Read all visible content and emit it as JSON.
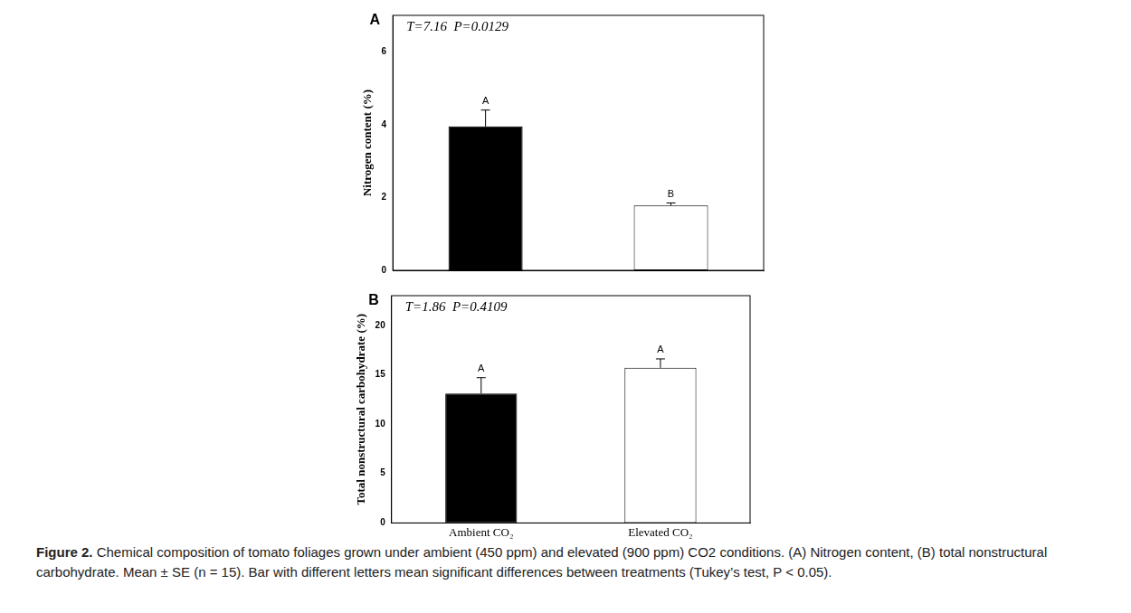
{
  "caption": {
    "label": "Figure 2.",
    "text": "Chemical composition of tomato foliages grown under ambient (450 ppm) and elevated (900 ppm) CO2 conditions. (A) Nitrogen content, (B) total nonstructural carbohydrate. Mean ± SE (n = 15). Bar with different letters mean significant differences between treatments (Tukey’s test, P < 0.05)."
  },
  "chart_data": [
    {
      "type": "bar",
      "panel": "A",
      "annotation": "T=7.16  P=0.0129",
      "y_label": "Nitrogen content (%)",
      "categories": [
        null,
        null
      ],
      "values": [
        3.95,
        1.78
      ],
      "errors": [
        0.45,
        0.07
      ],
      "letters": [
        "A",
        "B"
      ],
      "colors": [
        "#000000",
        "#ffffff"
      ],
      "ylim": [
        0,
        7
      ],
      "yticks": [
        0,
        2,
        4,
        6
      ],
      "grid": false,
      "tick_labels": "y"
    },
    {
      "type": "bar",
      "panel": "B",
      "annotation": "T=1.86  P=0.4109",
      "y_label": "Total nonstructural carbohydrate (%)",
      "categories": [
        "Ambient CO₂",
        "Elevated CO₂"
      ],
      "values": [
        13.1,
        15.7
      ],
      "errors": [
        1.6,
        0.9
      ],
      "letters": [
        "A",
        "A"
      ],
      "colors": [
        "#000000",
        "#ffffff"
      ],
      "ylim": [
        0,
        23
      ],
      "yticks": [
        0,
        5,
        10,
        15,
        20
      ],
      "grid": false
    }
  ]
}
